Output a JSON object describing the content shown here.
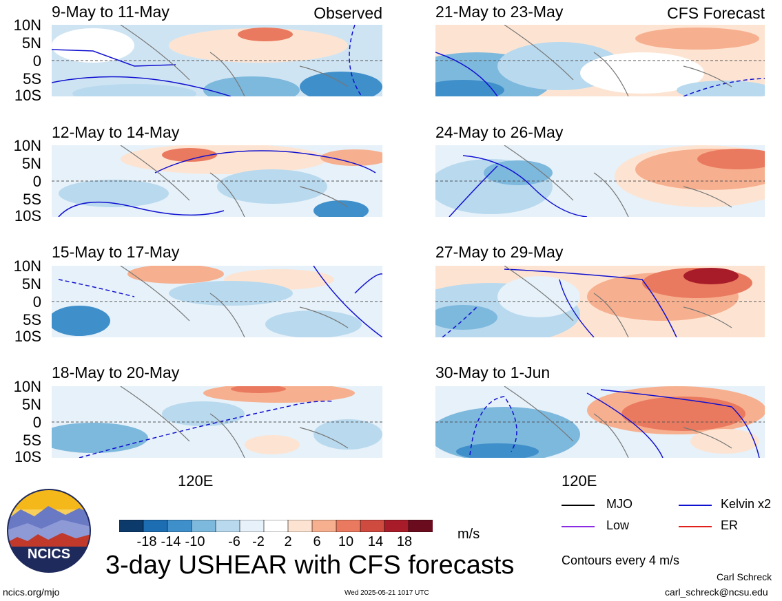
{
  "left_header_tag": "Observed",
  "right_header_tag": "CFS Forecast",
  "panels_left": [
    {
      "title": "9-May to 11-May"
    },
    {
      "title": "12-May to 14-May"
    },
    {
      "title": "15-May to 17-May"
    },
    {
      "title": "18-May to 20-May"
    }
  ],
  "panels_right": [
    {
      "title": "21-May to 23-May"
    },
    {
      "title": "24-May to 26-May"
    },
    {
      "title": "27-May to 29-May"
    },
    {
      "title": "30-May to 1-Jun"
    }
  ],
  "lat_labels": [
    "10N",
    "5N",
    "0",
    "5S",
    "10S"
  ],
  "lon_label": "120E",
  "colorbar": {
    "colors": [
      "#0b3a6b",
      "#1d6db3",
      "#3f8fcb",
      "#7db8dd",
      "#b8d9ee",
      "#e6f1f9",
      "#ffffff",
      "#fde4d2",
      "#f7b08f",
      "#ea7a5f",
      "#cf4a3f",
      "#a81c2a",
      "#6b0b1e"
    ],
    "labels": [
      "-18",
      "-14",
      "-10",
      "-6",
      "-2",
      "2",
      "6",
      "10",
      "14",
      "18"
    ],
    "units": "m/s"
  },
  "legend": {
    "mjo": "MJO",
    "kelvin": "Kelvin x2",
    "low": "Low",
    "er": "ER",
    "colors": {
      "mjo": "#000000",
      "kelvin": "#1010d0",
      "low": "#8a2be2",
      "er": "#e0201a"
    }
  },
  "contour_note": "Contours every 4 m/s",
  "main_title": "3-day USHEAR with CFS forecasts",
  "logo_text": "NCICS",
  "site": "ncics.org/mjo",
  "timestamp": "Wed 2025-05-21 1017 UTC",
  "author": "Carl Schreck",
  "email": "carl_schreck@ncsu.edu"
}
